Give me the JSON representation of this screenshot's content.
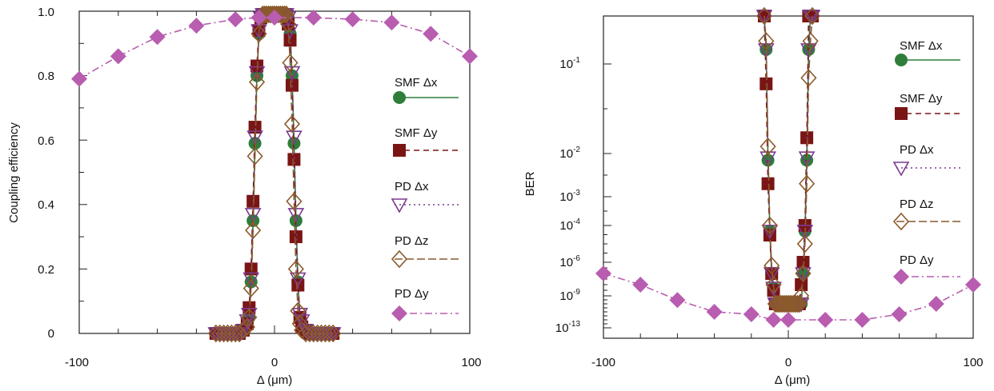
{
  "colors": {
    "smf_dx": "#2e7d3a",
    "smf_dy": "#7a1515",
    "pd_dx": "#7a3b91",
    "pd_dz": "#8b5a2b",
    "pd_dy": "#b85db0"
  },
  "chart_data": [
    {
      "type": "line",
      "title": "",
      "xlabel": "Δ (μm)",
      "ylabel": "Coupling efficiency",
      "xlim": [
        -100,
        100
      ],
      "ylim": [
        0,
        1.0
      ],
      "x_tick_labels": [
        "-100",
        "0",
        "100"
      ],
      "y_tick_labels": [
        "0",
        "0.2",
        "0.4",
        "0.6",
        "0.8",
        "1.0"
      ],
      "legend_position": "right",
      "grid": false,
      "series": [
        {
          "name": "SMF Δx",
          "marker": "circle",
          "x": [
            -30,
            -28,
            -26,
            -24,
            -22,
            -20,
            -18,
            -16,
            -14,
            -13,
            -12,
            -11,
            -10,
            -9,
            -8,
            -7,
            -6,
            -5,
            -4,
            -3,
            -2,
            -1,
            0,
            1,
            2,
            3,
            4,
            5,
            6,
            7,
            8,
            9,
            10,
            11,
            12,
            13,
            14,
            16,
            18,
            20,
            22,
            24,
            26,
            28,
            30
          ],
          "y": [
            0,
            0,
            0,
            0,
            0,
            0,
            0,
            0.01,
            0.03,
            0.05,
            0.16,
            0.35,
            0.59,
            0.8,
            0.93,
            0.98,
            0.99,
            0.99,
            0.99,
            0.99,
            0.99,
            0.99,
            0.99,
            0.99,
            0.99,
            0.99,
            0.99,
            0.99,
            0.99,
            0.98,
            0.93,
            0.8,
            0.59,
            0.35,
            0.16,
            0.05,
            0.03,
            0.01,
            0,
            0,
            0,
            0,
            0,
            0,
            0
          ]
        },
        {
          "name": "SMF Δy",
          "marker": "square",
          "x": [
            -30,
            -28,
            -26,
            -24,
            -22,
            -20,
            -18,
            -16,
            -14,
            -13,
            -12,
            -11,
            -10,
            -9,
            -8,
            -7,
            -6,
            -5,
            -4,
            -3,
            -2,
            -1,
            0,
            1,
            2,
            3,
            4,
            5,
            6,
            7,
            8,
            9,
            10,
            11,
            12,
            13,
            14,
            16,
            18,
            20,
            22,
            24,
            26,
            28,
            30
          ],
          "y": [
            0,
            0,
            0,
            0,
            0,
            0,
            0,
            0.01,
            0.03,
            0.08,
            0.2,
            0.41,
            0.64,
            0.83,
            0.94,
            0.98,
            0.99,
            0.99,
            0.99,
            0.99,
            0.99,
            0.99,
            0.99,
            0.99,
            0.99,
            0.99,
            0.99,
            0.99,
            0.99,
            0.96,
            0.91,
            0.77,
            0.54,
            0.3,
            0.15,
            0.05,
            0.02,
            0.01,
            0,
            0,
            0,
            0,
            0,
            0,
            0
          ]
        },
        {
          "name": "PD Δx",
          "marker": "triangle-down",
          "x": [
            -30,
            -28,
            -26,
            -24,
            -22,
            -20,
            -18,
            -16,
            -14,
            -13,
            -12,
            -11,
            -10,
            -9,
            -8,
            -7,
            -6,
            -5,
            -4,
            -3,
            -2,
            -1,
            0,
            1,
            2,
            3,
            4,
            5,
            6,
            7,
            8,
            9,
            10,
            11,
            12,
            13,
            14,
            16,
            18,
            20,
            22,
            24,
            26,
            28,
            30
          ],
          "y": [
            0,
            0,
            0,
            0,
            0,
            0,
            0,
            0.01,
            0.04,
            0.06,
            0.17,
            0.37,
            0.61,
            0.81,
            0.94,
            0.98,
            0.99,
            0.99,
            0.99,
            0.99,
            0.99,
            0.99,
            0.99,
            0.99,
            0.99,
            0.99,
            0.99,
            0.99,
            0.99,
            0.98,
            0.94,
            0.81,
            0.61,
            0.37,
            0.17,
            0.06,
            0.04,
            0.01,
            0,
            0,
            0,
            0,
            0,
            0,
            0
          ]
        },
        {
          "name": "PD Δz",
          "marker": "diamond-open",
          "x": [
            -30,
            -28,
            -26,
            -24,
            -22,
            -20,
            -18,
            -16,
            -14,
            -13,
            -12,
            -11,
            -10,
            -9,
            -8,
            -7,
            -6,
            -5,
            -4,
            -3,
            -2,
            -1,
            0,
            1,
            2,
            3,
            4,
            5,
            6,
            7,
            8,
            9,
            10,
            11,
            12,
            13,
            14,
            16,
            18,
            20,
            22,
            24,
            26,
            28,
            30
          ],
          "y": [
            0,
            0,
            0,
            0,
            0,
            0,
            0,
            0.01,
            0.02,
            0.05,
            0.14,
            0.32,
            0.55,
            0.78,
            0.93,
            0.98,
            0.99,
            0.99,
            0.99,
            0.99,
            0.99,
            0.99,
            0.99,
            0.99,
            0.99,
            0.99,
            0.99,
            0.99,
            0.99,
            0.96,
            0.84,
            0.65,
            0.41,
            0.2,
            0.07,
            0.03,
            0.01,
            0,
            0,
            0,
            0,
            0,
            0,
            0,
            0
          ]
        },
        {
          "name": "PD Δy",
          "marker": "diamond-filled",
          "x": [
            -100,
            -80,
            -60,
            -40,
            -20,
            -8,
            0,
            20,
            40,
            60,
            80,
            100
          ],
          "y": [
            0.79,
            0.86,
            0.92,
            0.955,
            0.975,
            0.98,
            0.98,
            0.98,
            0.975,
            0.965,
            0.93,
            0.86
          ]
        }
      ]
    },
    {
      "type": "line",
      "title": "",
      "xlabel": "Δ (μm)",
      "ylabel": "BER",
      "xlim": [
        -100,
        100
      ],
      "ylim": [
        "10^-13",
        "10^0"
      ],
      "y_scale": "log (non-uniform)",
      "x_tick_labels": [
        "-100",
        "0",
        "100"
      ],
      "y_tick_labels": [
        {
          "base": "10",
          "exp": "-1"
        },
        {
          "base": "10",
          "exp": "-2"
        },
        {
          "base": "10",
          "exp": "-3"
        },
        {
          "base": "10",
          "exp": "-4"
        },
        {
          "base": "10",
          "exp": "-6"
        },
        {
          "base": "10",
          "exp": "-9"
        },
        {
          "base": "10",
          "exp": "-13"
        }
      ],
      "legend_position": "right",
      "grid": false,
      "series": [
        {
          "name": "SMF Δx",
          "marker": "circle",
          "x": [
            -13,
            -12,
            -11,
            -10,
            -9,
            -8,
            -7,
            -6,
            -5,
            -4,
            -3,
            -2,
            -1,
            0,
            1,
            2,
            3,
            4,
            5,
            6,
            7,
            8,
            9,
            10,
            11,
            12,
            13
          ],
          "y": [
            "1e0",
            "2e-1",
            "7e-3",
            "5e-5",
            "1e-7",
            "5e-9",
            "1e-10",
            "1e-10",
            "1e-10",
            "1e-10",
            "1e-10",
            "1e-10",
            "1e-10",
            "1e-10",
            "1e-10",
            "1e-10",
            "1e-10",
            "1e-10",
            "1e-10",
            "1e-10",
            "1e-10",
            "1e-7",
            "5e-5",
            "7e-3",
            "2e-1",
            "1e0",
            "1e0"
          ]
        },
        {
          "name": "SMF Δy",
          "marker": "square",
          "x": [
            -13,
            -12,
            -11,
            -10,
            -9,
            -8,
            -7,
            -6,
            -5,
            -4,
            -3,
            -2,
            -1,
            0,
            1,
            2,
            3,
            4,
            5,
            6,
            7,
            8,
            9,
            10,
            11,
            12,
            13
          ],
          "y": [
            "1e0",
            "6e-2",
            "2e-3",
            "3e-5",
            "1e-7",
            "3e-9",
            "1e-10",
            "1e-10",
            "1e-10",
            "1e-10",
            "1e-10",
            "1e-10",
            "1e-10",
            "1e-10",
            "1e-10",
            "1e-10",
            "1e-10",
            "1e-10",
            "1e-10",
            "1e-10",
            "1e-8",
            "1e-6",
            "1e-4",
            "1.5e-2",
            "1e0",
            "1e0",
            "1e0"
          ]
        },
        {
          "name": "PD Δx",
          "marker": "triangle-down",
          "x": [
            -13,
            -12,
            -11,
            -10,
            -9,
            -8,
            -7,
            -6,
            -5,
            -4,
            -3,
            -2,
            -1,
            0,
            1,
            2,
            3,
            4,
            5,
            6,
            7,
            8,
            9,
            10,
            11,
            12,
            13
          ],
          "y": [
            "1e0",
            "2e-1",
            "8e-3",
            "5e-5",
            "1e-7",
            "5e-9",
            "1e-10",
            "1e-10",
            "1e-10",
            "1e-10",
            "1e-10",
            "1e-10",
            "1e-10",
            "1e-10",
            "1e-10",
            "1e-10",
            "1e-10",
            "1e-10",
            "1e-10",
            "1e-10",
            "1e-10",
            "1e-7",
            "5e-5",
            "8e-3",
            "2e-1",
            "1e0",
            "1e0"
          ]
        },
        {
          "name": "PD Δz",
          "marker": "diamond-open",
          "x": [
            -13,
            -12,
            -11,
            -10,
            -9,
            -8,
            -7,
            -6,
            -5,
            -4,
            -3,
            -2,
            -1,
            0,
            1,
            2,
            3,
            4,
            5,
            6,
            7,
            8,
            9,
            10,
            11,
            12,
            13
          ],
          "y": [
            "1e0",
            "3e-1",
            "1.2e-2",
            "1e-4",
            "5e-7",
            "1e-8",
            "1e-10",
            "1e-10",
            "1e-10",
            "1e-10",
            "1e-10",
            "1e-10",
            "1e-10",
            "1e-10",
            "1e-10",
            "1e-10",
            "1e-10",
            "1e-10",
            "1e-10",
            "1e-10",
            "1e-9",
            "1e-7",
            "1e-5",
            "2e-3",
            "7e-2",
            "3e-1",
            "1e0"
          ]
        },
        {
          "name": "PD Δy",
          "marker": "diamond-filled",
          "x": [
            -100,
            -80,
            -60,
            -40,
            -20,
            -8,
            0,
            20,
            40,
            60,
            80,
            100
          ],
          "y": [
            "1e-7",
            "1e-8",
            "3e-10",
            "1e-11",
            "5e-12",
            "1e-12",
            "1e-12",
            "1e-12",
            "1e-12",
            "5e-12",
            "1e-10",
            "1e-8"
          ]
        }
      ]
    }
  ]
}
